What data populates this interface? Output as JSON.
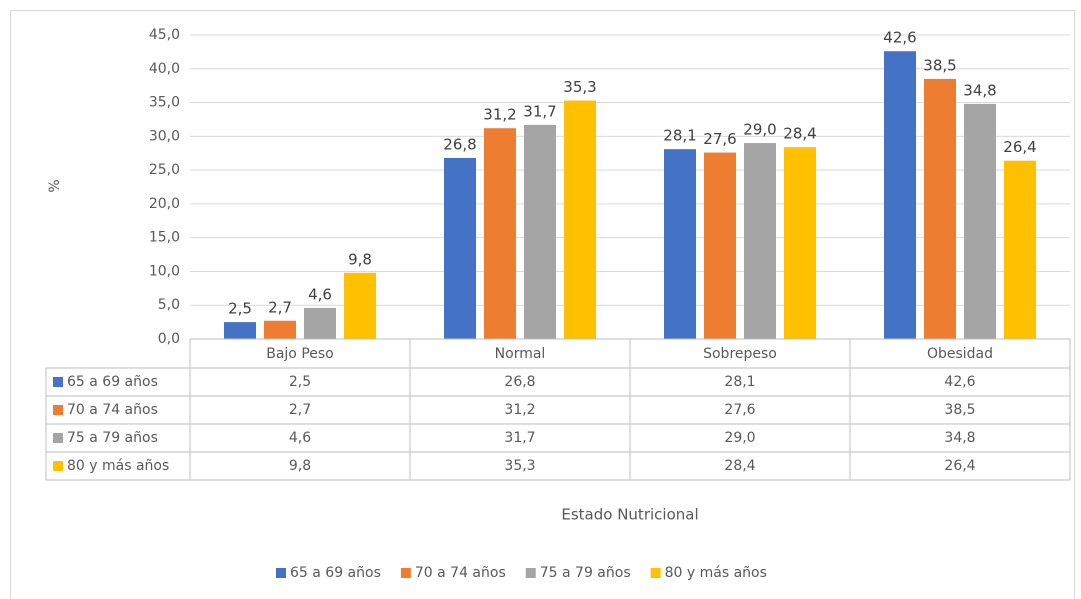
{
  "chart_data": {
    "type": "bar",
    "x_label": "Estado Nutricional",
    "y_label": "%",
    "categories": [
      "Bajo Peso",
      "Normal",
      "Sobrepeso",
      "Obesidad"
    ],
    "series": [
      {
        "name": "65 a 69 años",
        "color": "#4472c4",
        "values": [
          2.5,
          26.8,
          28.1,
          42.6
        ],
        "value_labels": [
          "2,5",
          "26,8",
          "28,1",
          "42,6"
        ]
      },
      {
        "name": "70 a 74 años",
        "color": "#ed7d31",
        "values": [
          2.7,
          31.2,
          27.6,
          38.5
        ],
        "value_labels": [
          "2,7",
          "31,2",
          "27,6",
          "38,5"
        ]
      },
      {
        "name": "75 a 79 años",
        "color": "#a5a5a5",
        "values": [
          4.6,
          31.7,
          29.0,
          34.8
        ],
        "value_labels": [
          "4,6",
          "31,7",
          "29,0",
          "34,8"
        ]
      },
      {
        "name": "80 y más años",
        "color": "#ffc000",
        "values": [
          9.8,
          35.3,
          28.4,
          26.4
        ],
        "value_labels": [
          "9,8",
          "35,3",
          "28,4",
          "26,4"
        ]
      }
    ],
    "ylim": [
      0,
      45
    ],
    "yticks": [
      {
        "value": 0,
        "label": "0,0"
      },
      {
        "value": 5,
        "label": "5,0"
      },
      {
        "value": 10,
        "label": "10,0"
      },
      {
        "value": 15,
        "label": "15,0"
      },
      {
        "value": 20,
        "label": "20,0"
      },
      {
        "value": 25,
        "label": "25,0"
      },
      {
        "value": 30,
        "label": "30,0"
      },
      {
        "value": 35,
        "label": "35,0"
      },
      {
        "value": 40,
        "label": "40,0"
      },
      {
        "value": 45,
        "label": "45,0"
      }
    ],
    "grid": true,
    "legend": "bottom",
    "data_table": true
  }
}
